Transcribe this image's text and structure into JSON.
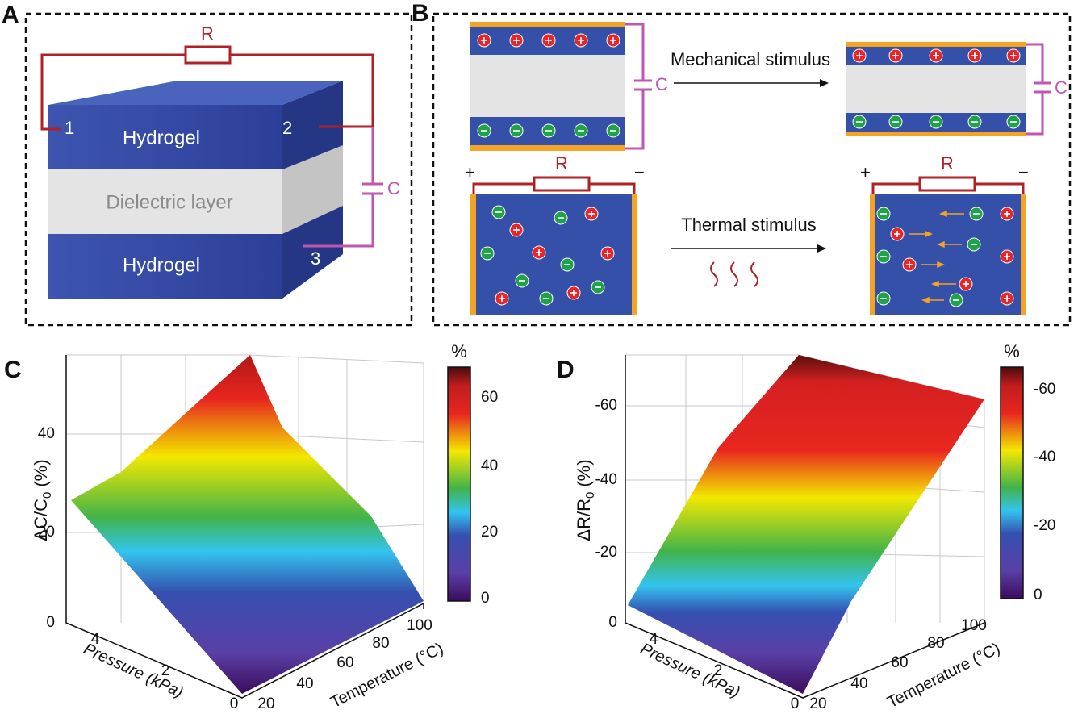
{
  "panels": {
    "a": {
      "label": "A",
      "resistor": "R",
      "capacitor": "C",
      "electrodes": [
        "1",
        "2",
        "3"
      ],
      "layers": [
        "Hydrogel",
        "Dielectric layer",
        "Hydrogel"
      ]
    },
    "b": {
      "label": "B",
      "capacitor": "C",
      "resistor": "R",
      "positive": "+",
      "negative": "−",
      "mechanical": "Mechanical stimulus",
      "thermal": "Thermal stimulus"
    },
    "c": {
      "label": "C",
      "z_label": {
        "main": "ΔC/C",
        "sub": "0",
        "unit": "(%)"
      },
      "z_ticks": [
        "0",
        "20",
        "40"
      ],
      "x_label": "Pressure (kPa)",
      "x_ticks": [
        "0",
        "2",
        "4"
      ],
      "y_label": "Temperature (°C)",
      "y_ticks": [
        "20",
        "40",
        "60",
        "80",
        "100"
      ],
      "colorbar_unit": "%",
      "colorbar_ticks": [
        "0",
        "20",
        "40",
        "60"
      ]
    },
    "d": {
      "label": "D",
      "z_label": {
        "main": "ΔR/R",
        "sub": "0",
        "unit": "(%)"
      },
      "z_ticks": [
        "0",
        "-20",
        "-40",
        "-60"
      ],
      "x_label": "Pressure (kPa)",
      "x_ticks": [
        "0",
        "2",
        "4"
      ],
      "y_label": "Temperature (°C)",
      "y_ticks": [
        "20",
        "40",
        "60",
        "80",
        "100"
      ],
      "colorbar_unit": "%",
      "colorbar_ticks": [
        "0",
        "-20",
        "-40",
        "-60"
      ]
    }
  }
}
